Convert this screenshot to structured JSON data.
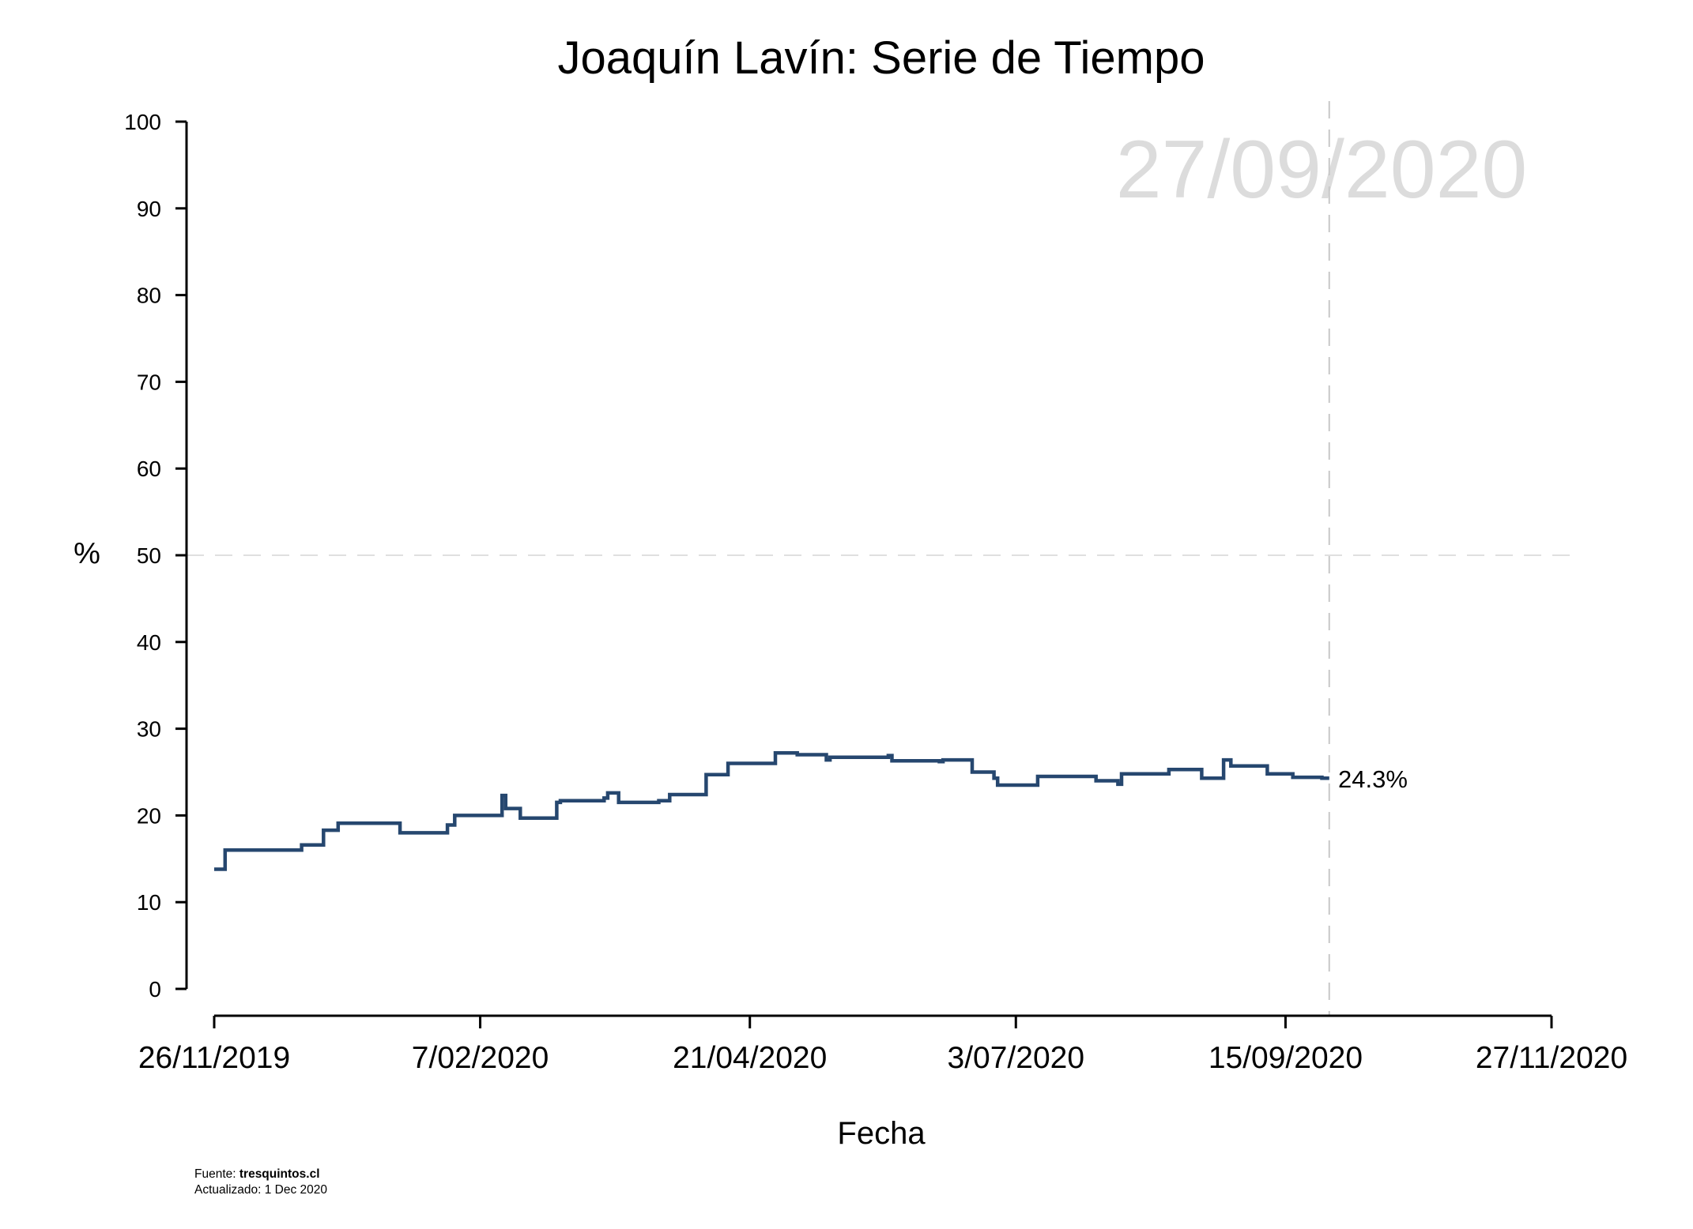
{
  "chart_data": {
    "type": "line",
    "line_style": "step",
    "title": "Joaquín Lavín: Serie de Tiempo",
    "xlabel": "Fecha",
    "ylabel": "%",
    "ylim": [
      0,
      100
    ],
    "yticks": [
      0,
      10,
      20,
      30,
      40,
      50,
      60,
      70,
      80,
      90,
      100
    ],
    "xlim": [
      "2019-11-26",
      "2020-11-27"
    ],
    "xticks": [
      {
        "date": "2019-11-26",
        "label": "26/11/2019"
      },
      {
        "date": "2020-02-07",
        "label": "7/02/2020"
      },
      {
        "date": "2020-04-21",
        "label": "21/04/2020"
      },
      {
        "date": "2020-07-03",
        "label": "3/07/2020"
      },
      {
        "date": "2020-09-15",
        "label": "15/09/2020"
      },
      {
        "date": "2020-11-27",
        "label": "27/11/2020"
      }
    ],
    "reference_hline": 50,
    "reference_vline": "2020-09-27",
    "watermark_date": "27/09/2020",
    "end_label": "24.3%",
    "grid": false,
    "series": [
      {
        "color": "#26476f",
        "points": [
          [
            "2019-11-26",
            13.8
          ],
          [
            "2019-11-29",
            16.0
          ],
          [
            "2019-12-20",
            16.6
          ],
          [
            "2019-12-26",
            18.3
          ],
          [
            "2019-12-30",
            19.1
          ],
          [
            "2020-01-16",
            18.0
          ],
          [
            "2020-01-29",
            18.9
          ],
          [
            "2020-01-31",
            20.0
          ],
          [
            "2020-02-13",
            22.3
          ],
          [
            "2020-02-14",
            20.8
          ],
          [
            "2020-02-18",
            19.7
          ],
          [
            "2020-02-28",
            21.5
          ],
          [
            "2020-02-29",
            21.7
          ],
          [
            "2020-03-12",
            22.0
          ],
          [
            "2020-03-13",
            22.6
          ],
          [
            "2020-03-16",
            21.5
          ],
          [
            "2020-03-27",
            21.7
          ],
          [
            "2020-03-30",
            22.4
          ],
          [
            "2020-04-09",
            24.7
          ],
          [
            "2020-04-15",
            26.0
          ],
          [
            "2020-04-28",
            27.2
          ],
          [
            "2020-05-04",
            27.0
          ],
          [
            "2020-05-12",
            26.4
          ],
          [
            "2020-05-13",
            26.7
          ],
          [
            "2020-05-29",
            26.9
          ],
          [
            "2020-05-30",
            26.3
          ],
          [
            "2020-06-12",
            26.2
          ],
          [
            "2020-06-13",
            26.4
          ],
          [
            "2020-06-21",
            25.0
          ],
          [
            "2020-06-27",
            24.3
          ],
          [
            "2020-06-28",
            23.5
          ],
          [
            "2020-07-09",
            24.5
          ],
          [
            "2020-07-25",
            24.0
          ],
          [
            "2020-07-31",
            23.6
          ],
          [
            "2020-08-01",
            24.8
          ],
          [
            "2020-08-14",
            25.3
          ],
          [
            "2020-08-23",
            24.3
          ],
          [
            "2020-08-29",
            26.4
          ],
          [
            "2020-08-31",
            25.7
          ],
          [
            "2020-09-10",
            24.8
          ],
          [
            "2020-09-17",
            24.4
          ],
          [
            "2020-09-25",
            24.3
          ],
          [
            "2020-09-27",
            24.3
          ]
        ]
      }
    ],
    "source_label": "Fuente: ",
    "source_site": "tresquintos.cl",
    "updated": "Actualizado: 1 Dec 2020"
  }
}
